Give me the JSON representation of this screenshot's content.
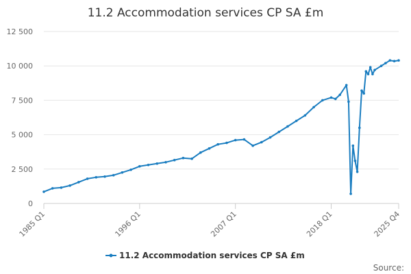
{
  "chart_data": {
    "type": "line",
    "title": "11.2 Accommodation services CP SA £m",
    "xlabel": "",
    "ylabel": "",
    "x_ticks": [
      "1985 Q1",
      "1996 Q1",
      "2007 Q1",
      "2018 Q1",
      "2025 Q4"
    ],
    "y_ticks": [
      "0",
      "2 500",
      "5 000",
      "7 500",
      "10 000",
      "12 500"
    ],
    "ylim": [
      0,
      12500
    ],
    "x_range": [
      "1985 Q1",
      "2025 Q4"
    ],
    "grid": "horizontal",
    "legend_position": "bottom",
    "series": [
      {
        "name": "11.2 Accommodation services CP SA £m",
        "color": "#1a7dc0",
        "points": [
          [
            "1985 Q1",
            850
          ],
          [
            "1986 Q1",
            1100
          ],
          [
            "1987 Q1",
            1150
          ],
          [
            "1988 Q1",
            1300
          ],
          [
            "1989 Q1",
            1550
          ],
          [
            "1990 Q1",
            1800
          ],
          [
            "1991 Q1",
            1900
          ],
          [
            "1992 Q1",
            1950
          ],
          [
            "1993 Q1",
            2050
          ],
          [
            "1994 Q1",
            2250
          ],
          [
            "1995 Q1",
            2450
          ],
          [
            "1996 Q1",
            2700
          ],
          [
            "1997 Q1",
            2800
          ],
          [
            "1998 Q1",
            2900
          ],
          [
            "1999 Q1",
            3000
          ],
          [
            "2000 Q1",
            3150
          ],
          [
            "2001 Q1",
            3300
          ],
          [
            "2002 Q1",
            3250
          ],
          [
            "2003 Q1",
            3700
          ],
          [
            "2004 Q1",
            4000
          ],
          [
            "2005 Q1",
            4300
          ],
          [
            "2006 Q1",
            4400
          ],
          [
            "2007 Q1",
            4600
          ],
          [
            "2008 Q1",
            4650
          ],
          [
            "2009 Q1",
            4200
          ],
          [
            "2010 Q1",
            4450
          ],
          [
            "2011 Q1",
            4800
          ],
          [
            "2012 Q1",
            5200
          ],
          [
            "2013 Q1",
            5600
          ],
          [
            "2014 Q1",
            6000
          ],
          [
            "2015 Q1",
            6400
          ],
          [
            "2016 Q1",
            7000
          ],
          [
            "2017 Q1",
            7500
          ],
          [
            "2018 Q1",
            7700
          ],
          [
            "2018 Q3",
            7600
          ],
          [
            "2019 Q1",
            7900
          ],
          [
            "2019 Q4",
            8600
          ],
          [
            "2020 Q1",
            7400
          ],
          [
            "2020 Q2",
            700
          ],
          [
            "2020 Q3",
            4200
          ],
          [
            "2020 Q4",
            3100
          ],
          [
            "2021 Q1",
            2300
          ],
          [
            "2021 Q2",
            5500
          ],
          [
            "2021 Q3",
            8200
          ],
          [
            "2021 Q4",
            8000
          ],
          [
            "2022 Q1",
            9600
          ],
          [
            "2022 Q2",
            9400
          ],
          [
            "2022 Q3",
            9900
          ],
          [
            "2022 Q4",
            9400
          ],
          [
            "2023 Q1",
            9700
          ],
          [
            "2023 Q4",
            10000
          ],
          [
            "2024 Q2",
            10200
          ],
          [
            "2024 Q4",
            10400
          ],
          [
            "2025 Q2",
            10350
          ],
          [
            "2025 Q4",
            10400
          ]
        ]
      }
    ]
  },
  "footer": {
    "source_label": "Source:"
  }
}
